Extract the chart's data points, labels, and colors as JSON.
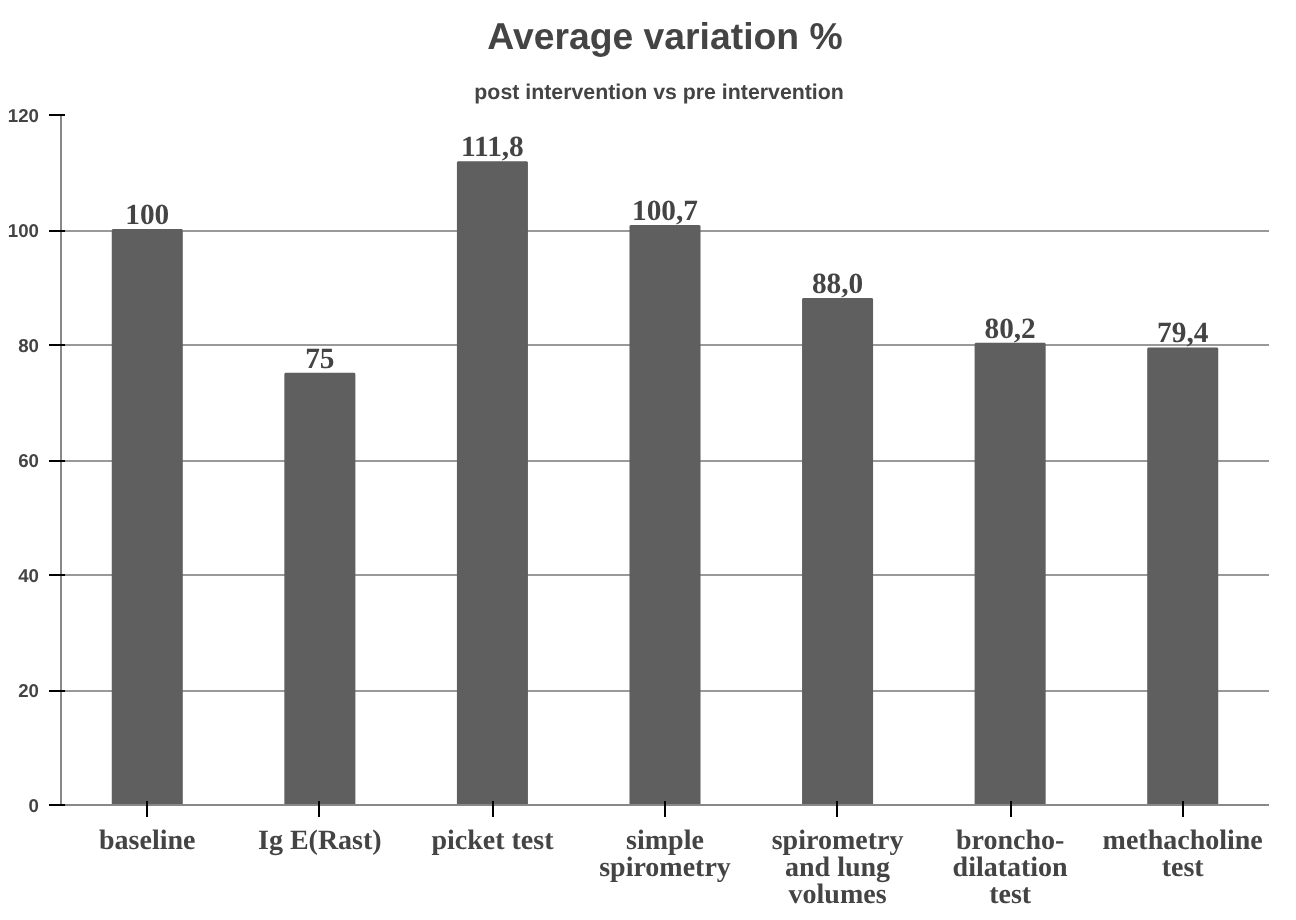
{
  "chart_data": {
    "type": "bar",
    "title": "Average variation %",
    "subtitle": "post intervention  vs  pre intervention",
    "categories": [
      "baseline",
      "Ig E(Rast)",
      "picket test",
      "simple\nspirometry",
      "spirometry\nand lung\nvolumes",
      "broncho-\ndilatation\ntest",
      "methacholine\ntest"
    ],
    "values": [
      100,
      75,
      111.8,
      100.7,
      88.0,
      80.2,
      79.4
    ],
    "value_labels": [
      "100",
      "75",
      "111,8",
      "100,7",
      "88,0",
      "80,2",
      "79,4"
    ],
    "color": "#5f5f5f",
    "ylim": [
      0,
      120
    ],
    "yticks": [
      0,
      20,
      40,
      60,
      80,
      100,
      120
    ],
    "grid": "y"
  }
}
